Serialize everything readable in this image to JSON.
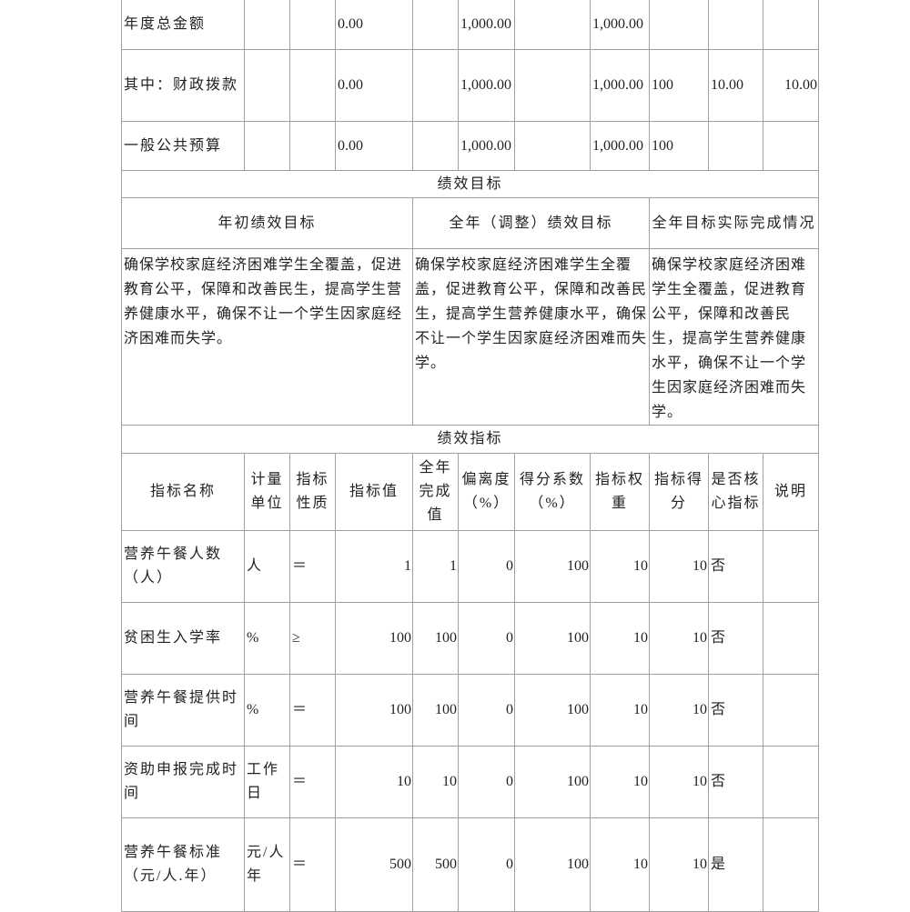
{
  "budget_rows": [
    {
      "label": "年度总金额",
      "c2": "",
      "c3": "",
      "c4": "0.00",
      "c5": "",
      "c6": "1,000.00",
      "c7": "",
      "c8": "1,000.00",
      "c9": "",
      "c10": "",
      "c11": ""
    },
    {
      "label": "其中：财政拨款",
      "c2": "",
      "c3": "",
      "c4": "0.00",
      "c5": "",
      "c6": "1,000.00",
      "c7": "",
      "c8": "1,000.00",
      "c9": "100",
      "c10": "10.00",
      "c11": "10.00"
    },
    {
      "label": "一般公共预算",
      "c2": "",
      "c3": "",
      "c4": "0.00",
      "c5": "",
      "c6": "1,000.00",
      "c7": "",
      "c8": "1,000.00",
      "c9": "100",
      "c10": "",
      "c11": ""
    }
  ],
  "goals": {
    "section_title": "绩效目标",
    "headers": [
      "年初绩效目标",
      "全年（调整）绩效目标",
      "全年目标实际完成情况"
    ],
    "texts": [
      "确保学校家庭经济困难学生全覆盖，促进教育公平，保障和改善民生，提高学生营养健康水平，确保不让一个学生因家庭经济困难而失学。",
      "确保学校家庭经济困难学生全覆盖，促进教育公平，保障和改善民生，提高学生营养健康水平，确保不让一个学生因家庭经济困难而失学。",
      "确保学校家庭经济困难学生全覆盖，促进教育公平，保障和改善民生，提高学生营养健康水平，确保不让一个学生因家庭经济困难而失学。"
    ]
  },
  "indicators": {
    "section_title": "绩效指标",
    "headers": [
      "指标名称",
      "计量单位",
      "指标性质",
      "指标值",
      "全年完成值",
      "偏离度（%）",
      "得分系数（%）",
      "指标权重",
      "指标得分",
      "是否核心指标",
      "说明"
    ],
    "rows": [
      [
        "营养午餐人数（人）",
        "人",
        "＝",
        "1",
        "1",
        "0",
        "100",
        "10",
        "10",
        "否",
        ""
      ],
      [
        "贫困生入学率",
        "%",
        "≥",
        "100",
        "100",
        "0",
        "100",
        "10",
        "10",
        "否",
        ""
      ],
      [
        "营养午餐提供时间",
        "%",
        "＝",
        "100",
        "100",
        "0",
        "100",
        "10",
        "10",
        "否",
        ""
      ],
      [
        "资助申报完成时间",
        "工作日",
        "＝",
        "10",
        "10",
        "0",
        "100",
        "10",
        "10",
        "否",
        ""
      ],
      [
        "营养午餐标准（元/人.年）",
        "元/人年",
        "＝",
        "500",
        "500",
        "0",
        "100",
        "10",
        "10",
        "是",
        ""
      ]
    ]
  }
}
